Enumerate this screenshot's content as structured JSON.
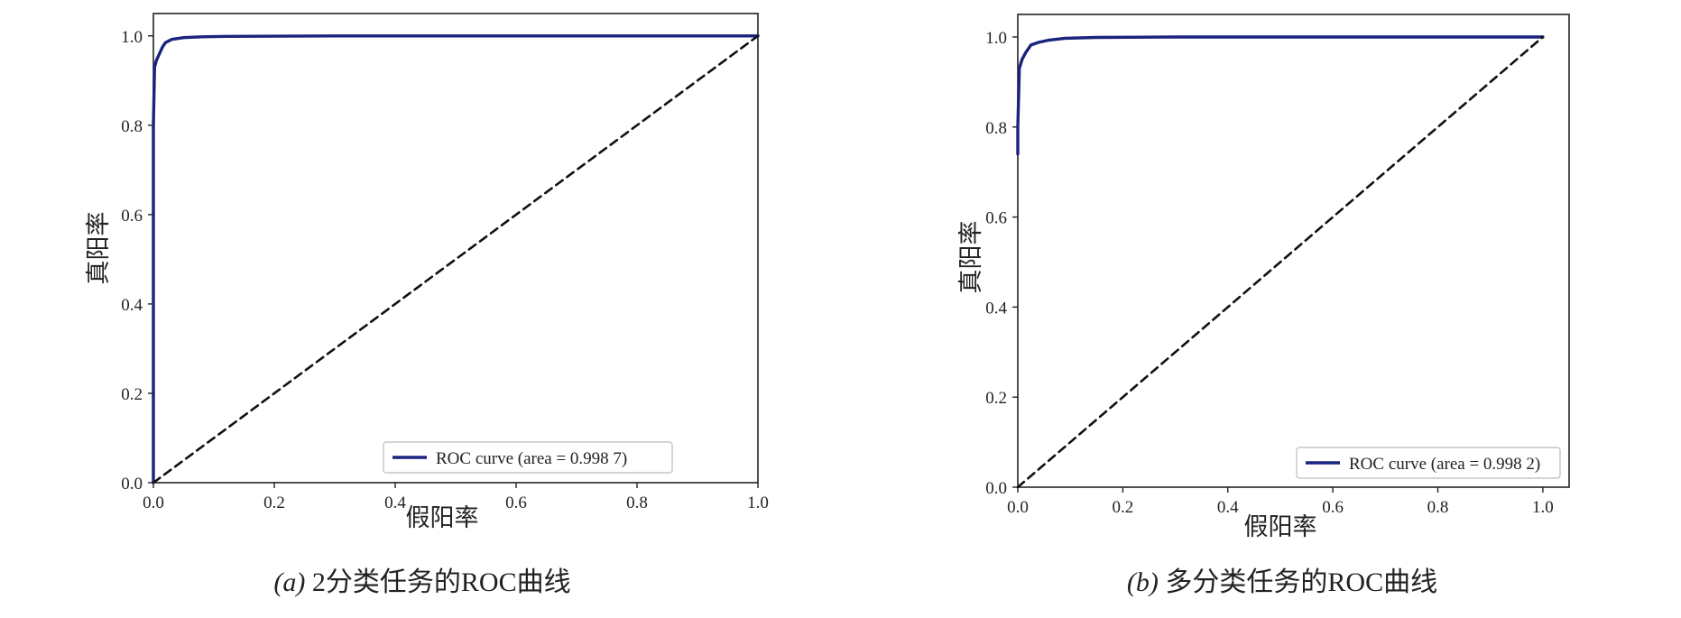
{
  "chart_data": [
    {
      "type": "line",
      "caption_tag": "(a)",
      "caption_text": "2分类任务的ROC曲线",
      "xlabel": "假阳率",
      "ylabel": "真阳率",
      "xlim": [
        0,
        1.0
      ],
      "ylim": [
        0,
        1.05
      ],
      "xticks": [
        "0.0",
        "0.2",
        "0.4",
        "0.6",
        "0.8",
        "1.0"
      ],
      "yticks": [
        "0.0",
        "0.2",
        "0.4",
        "0.6",
        "0.8",
        "1.0"
      ],
      "legend_position": "lower-right",
      "grid": false,
      "series": [
        {
          "name": "ROC curve (area = 0.998 7)",
          "color": "#1a237e",
          "style": "solid",
          "x": [
            0.0,
            0.0,
            0.002,
            0.005,
            0.01,
            0.015,
            0.02,
            0.03,
            0.05,
            0.08,
            0.12,
            0.3,
            1.0
          ],
          "y": [
            0.0,
            0.8,
            0.93,
            0.945,
            0.96,
            0.975,
            0.985,
            0.992,
            0.996,
            0.998,
            0.999,
            1.0,
            1.0
          ]
        },
        {
          "name": "",
          "color": "#111111",
          "style": "dashed",
          "x": [
            0,
            1
          ],
          "y": [
            0,
            1
          ]
        }
      ]
    },
    {
      "type": "line",
      "caption_tag": "(b)",
      "caption_text": "多分类任务的ROC曲线",
      "xlabel": "假阳率",
      "ylabel": "真阳率",
      "xlim": [
        0,
        1.05
      ],
      "ylim": [
        0,
        1.05
      ],
      "xticks": [
        "0.0",
        "0.2",
        "0.4",
        "0.6",
        "0.8",
        "1.0"
      ],
      "yticks": [
        "0.0",
        "0.2",
        "0.4",
        "0.6",
        "0.8",
        "1.0"
      ],
      "legend_position": "lower-right",
      "grid": false,
      "series": [
        {
          "name": "ROC curve (area = 0.998 2)",
          "color": "#1a237e",
          "style": "solid",
          "x": [
            0.0,
            0.0,
            0.003,
            0.008,
            0.015,
            0.025,
            0.04,
            0.06,
            0.09,
            0.15,
            0.3,
            1.0
          ],
          "y": [
            0.74,
            0.8,
            0.93,
            0.95,
            0.965,
            0.982,
            0.988,
            0.993,
            0.997,
            0.999,
            1.0,
            1.0
          ]
        },
        {
          "name": "",
          "color": "#111111",
          "style": "dashed",
          "x": [
            0,
            1
          ],
          "y": [
            0,
            1
          ]
        }
      ]
    }
  ]
}
